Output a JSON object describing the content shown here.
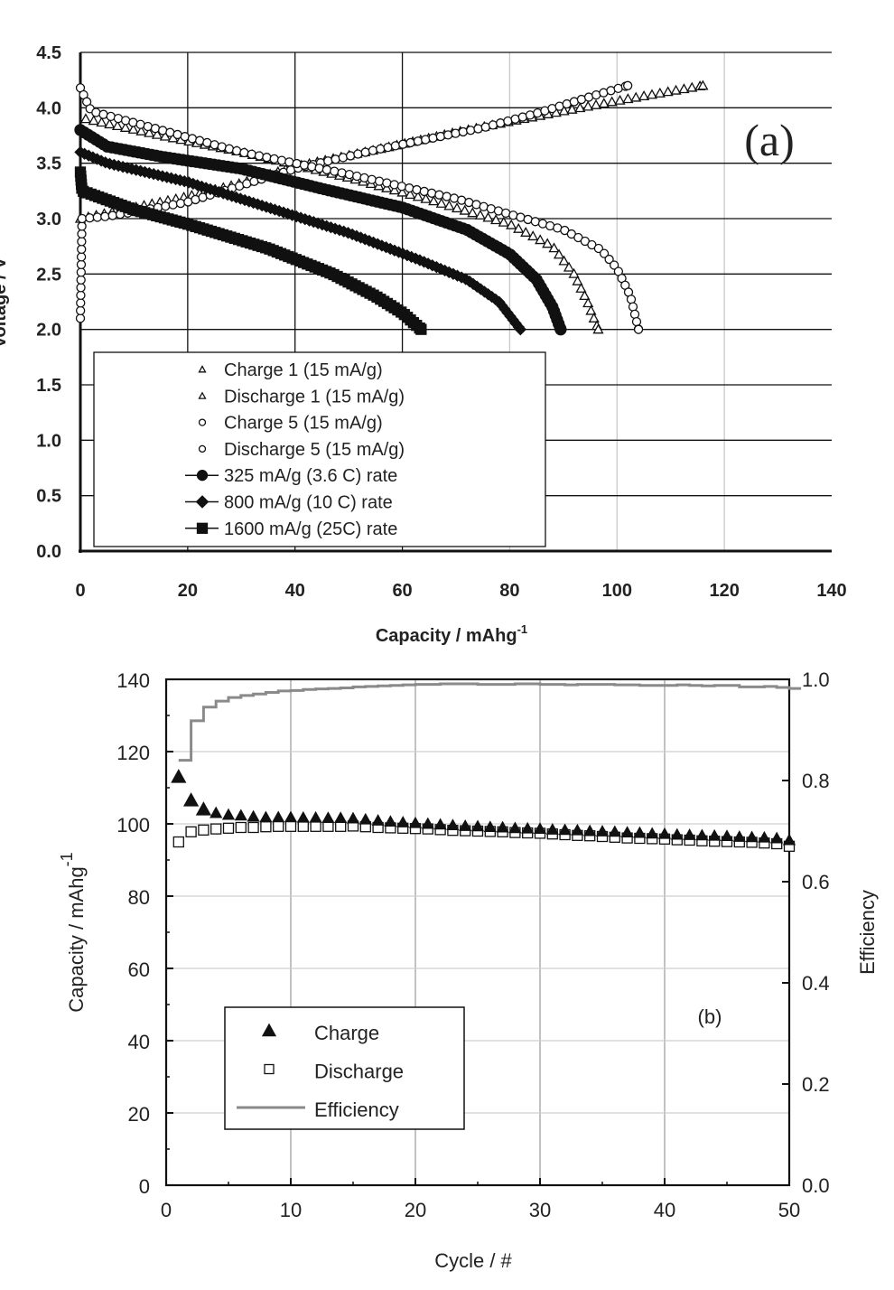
{
  "chart_data": [
    {
      "type": "scatter",
      "panel_label": "(a)",
      "xlabel": "Capacity / mAhg",
      "xlabel_superscript": "-1",
      "ylabel": "Voltage / V",
      "xlim": [
        0,
        140
      ],
      "ylim": [
        0,
        4.5
      ],
      "xticks": [
        "0",
        "20",
        "40",
        "60",
        "80",
        "100",
        "120",
        "140"
      ],
      "yticks": [
        "0.0",
        "0.5",
        "1.0",
        "1.5",
        "2.0",
        "2.5",
        "3.0",
        "3.5",
        "4.0",
        "4.5"
      ],
      "grid": true,
      "legend_position": "bottom-left",
      "series": [
        {
          "name": "Charge 1 (15 mA/g)",
          "marker": "open-triangle",
          "points": [
            [
              0,
              3.0
            ],
            [
              5,
              3.05
            ],
            [
              10,
              3.1
            ],
            [
              20,
              3.2
            ],
            [
              30,
              3.32
            ],
            [
              40,
              3.47
            ],
            [
              55,
              3.62
            ],
            [
              70,
              3.78
            ],
            [
              90,
              3.97
            ],
            [
              102,
              4.08
            ],
            [
              116,
              4.2
            ]
          ]
        },
        {
          "name": "Discharge 1 (15 mA/g)",
          "marker": "open-triangle",
          "points": [
            [
              1,
              3.9
            ],
            [
              15,
              3.75
            ],
            [
              30,
              3.6
            ],
            [
              50,
              3.37
            ],
            [
              65,
              3.17
            ],
            [
              80,
              2.95
            ],
            [
              88,
              2.75
            ],
            [
              92,
              2.5
            ],
            [
              94.5,
              2.25
            ],
            [
              96.5,
              2.0
            ]
          ]
        },
        {
          "name": "Charge 5 (15 mA/g)",
          "marker": "open-circle",
          "points": [
            [
              0,
              2.1
            ],
            [
              0.3,
              3.0
            ],
            [
              5,
              3.02
            ],
            [
              10,
              3.06
            ],
            [
              20,
              3.15
            ],
            [
              30,
              3.3
            ],
            [
              40,
              3.45
            ],
            [
              55,
              3.62
            ],
            [
              75,
              3.82
            ],
            [
              85,
              3.95
            ],
            [
              95,
              4.1
            ],
            [
              102,
              4.2
            ]
          ]
        },
        {
          "name": "Discharge 5 (15 mA/g)",
          "marker": "open-circle",
          "points": [
            [
              0,
              4.18
            ],
            [
              2,
              3.97
            ],
            [
              15,
              3.8
            ],
            [
              30,
              3.6
            ],
            [
              50,
              3.4
            ],
            [
              70,
              3.18
            ],
            [
              90,
              2.9
            ],
            [
              97,
              2.72
            ],
            [
              100,
              2.55
            ],
            [
              102.5,
              2.3
            ],
            [
              104,
              2.0
            ]
          ]
        },
        {
          "name": "325 mA/g (3.6 C) rate",
          "marker": "filled-circle",
          "points": [
            [
              0,
              3.8
            ],
            [
              5,
              3.65
            ],
            [
              15,
              3.56
            ],
            [
              30,
              3.45
            ],
            [
              45,
              3.27
            ],
            [
              60,
              3.1
            ],
            [
              72,
              2.9
            ],
            [
              80,
              2.68
            ],
            [
              85,
              2.45
            ],
            [
              88,
              2.2
            ],
            [
              89.5,
              2.0
            ]
          ]
        },
        {
          "name": "800 mA/g (10 C) rate",
          "marker": "filled-diamond",
          "points": [
            [
              0,
              3.6
            ],
            [
              5,
              3.5
            ],
            [
              20,
              3.33
            ],
            [
              35,
              3.1
            ],
            [
              50,
              2.87
            ],
            [
              63,
              2.63
            ],
            [
              72,
              2.45
            ],
            [
              78,
              2.25
            ],
            [
              82,
              2.0
            ]
          ]
        },
        {
          "name": "1600 mA/g (25C) rate",
          "marker": "filled-square",
          "points": [
            [
              0,
              3.42
            ],
            [
              0.3,
              3.25
            ],
            [
              10,
              3.08
            ],
            [
              20,
              2.95
            ],
            [
              35,
              2.73
            ],
            [
              47,
              2.5
            ],
            [
              55,
              2.3
            ],
            [
              60,
              2.15
            ],
            [
              63.5,
              2.0
            ]
          ]
        }
      ]
    },
    {
      "type": "scatter",
      "panel_label": "(b)",
      "xlabel": "Cycle / #",
      "ylabel": "Capacity / mAhg",
      "ylabel_superscript": "-1",
      "y2label": "Efficiency",
      "xlim": [
        0,
        50
      ],
      "ylim": [
        0,
        140
      ],
      "y2lim": [
        0,
        1.0
      ],
      "xticks": [
        "0",
        "10",
        "20",
        "30",
        "40",
        "50"
      ],
      "yticks": [
        "0",
        "20",
        "40",
        "60",
        "80",
        "100",
        "120",
        "140"
      ],
      "y2ticks": [
        "0.0",
        "0.2",
        "0.4",
        "0.6",
        "0.8",
        "1.0"
      ],
      "grid": true,
      "legend_position": "bottom-left",
      "x": [
        1,
        2,
        3,
        4,
        5,
        6,
        7,
        8,
        9,
        10,
        11,
        12,
        13,
        14,
        15,
        16,
        17,
        18,
        19,
        20,
        21,
        22,
        23,
        24,
        25,
        26,
        27,
        28,
        29,
        30,
        31,
        32,
        33,
        34,
        35,
        36,
        37,
        38,
        39,
        40,
        41,
        42,
        43,
        44,
        45,
        46,
        47,
        48,
        49,
        50
      ],
      "series": [
        {
          "name": "Charge",
          "marker": "filled-triangle",
          "axis": "left",
          "values": [
            113,
            106.5,
            104,
            103,
            102.5,
            102.3,
            102,
            101.8,
            101.8,
            101.8,
            101.7,
            101.7,
            101.6,
            101.6,
            101.5,
            101.2,
            100.9,
            100.6,
            100.4,
            100.2,
            100,
            99.8,
            99.6,
            99.4,
            99.3,
            99.1,
            99,
            98.8,
            98.7,
            98.6,
            98.4,
            98.3,
            98.2,
            98,
            97.9,
            97.8,
            97.6,
            97.5,
            97.3,
            97.2,
            97,
            96.9,
            96.8,
            96.7,
            96.6,
            96.4,
            96.3,
            96.2,
            96,
            95.5
          ]
        },
        {
          "name": "Discharge",
          "marker": "open-square",
          "axis": "left",
          "values": [
            95,
            97.8,
            98.3,
            98.6,
            98.8,
            99,
            99,
            99.2,
            99.3,
            99.3,
            99.3,
            99.3,
            99.3,
            99.3,
            99.4,
            99.2,
            99,
            98.9,
            98.8,
            98.7,
            98.6,
            98.4,
            98.2,
            98.1,
            98,
            97.9,
            97.8,
            97.6,
            97.5,
            97.4,
            97.2,
            97,
            96.8,
            96.7,
            96.5,
            96.3,
            96.1,
            96,
            95.9,
            95.8,
            95.6,
            95.5,
            95.3,
            95.2,
            95.1,
            95,
            94.9,
            94.7,
            94.5,
            93.8
          ]
        },
        {
          "name": "Efficiency",
          "marker": "line",
          "axis": "right",
          "color": "#8a8a8a",
          "values": [
            0.84,
            0.918,
            0.945,
            0.957,
            0.964,
            0.968,
            0.971,
            0.974,
            0.977,
            0.978,
            0.98,
            0.981,
            0.982,
            0.983,
            0.985,
            0.986,
            0.987,
            0.988,
            0.989,
            0.99,
            0.99,
            0.991,
            0.991,
            0.991,
            0.99,
            0.99,
            0.99,
            0.991,
            0.991,
            0.99,
            0.99,
            0.989,
            0.99,
            0.99,
            0.99,
            0.989,
            0.989,
            0.988,
            0.988,
            0.988,
            0.989,
            0.988,
            0.987,
            0.988,
            0.988,
            0.985,
            0.985,
            0.986,
            0.984,
            0.982
          ]
        }
      ]
    }
  ]
}
